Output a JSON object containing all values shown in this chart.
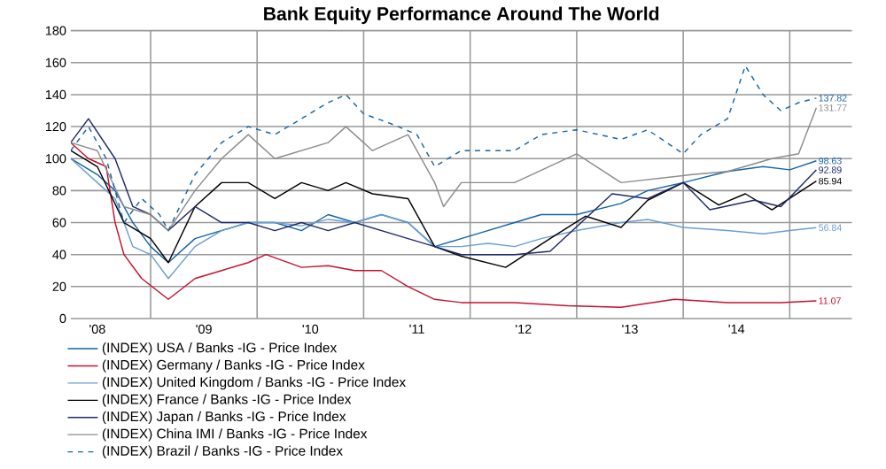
{
  "chart_data": {
    "type": "line",
    "title": "Bank Equity Performance Around The World",
    "xlim": [
      "2008-04",
      "2015-08"
    ],
    "ylim": [
      0,
      180
    ],
    "xticks": [
      {
        "value": "2008-07",
        "label": "'08"
      },
      {
        "value": "2009-07",
        "label": "'09"
      },
      {
        "value": "2010-07",
        "label": "'10"
      },
      {
        "value": "2011-07",
        "label": "'11"
      },
      {
        "value": "2012-07",
        "label": "'12"
      },
      {
        "value": "2013-07",
        "label": "'13"
      },
      {
        "value": "2014-07",
        "label": "'14"
      },
      {
        "value": "2009-01",
        "label": null
      },
      {
        "value": "2010-01",
        "label": null
      },
      {
        "value": "2011-01",
        "label": null
      },
      {
        "value": "2012-01",
        "label": null
      },
      {
        "value": "2013-01",
        "label": null
      },
      {
        "value": "2014-01",
        "label": null
      },
      {
        "value": "2015-01",
        "label": null
      }
    ],
    "yticks": [
      0,
      20,
      40,
      60,
      80,
      100,
      120,
      140,
      160,
      180
    ],
    "grid": true,
    "legend": "bottom",
    "series": [
      {
        "name": "(INDEX) USA / Banks -IG - Price Index",
        "color": "#1565a8",
        "x": [
          "2008-04",
          "2008-07",
          "2008-09",
          "2008-11",
          "2009-01",
          "2009-03",
          "2009-06",
          "2009-09",
          "2009-12",
          "2010-03",
          "2010-06",
          "2010-09",
          "2010-12",
          "2011-03",
          "2011-06",
          "2011-09",
          "2011-12",
          "2012-06",
          "2012-09",
          "2013-01",
          "2013-06",
          "2013-09",
          "2014-01",
          "2014-06",
          "2014-10",
          "2015-01",
          "2015-04"
        ],
        "values": [
          100,
          90,
          80,
          60,
          45,
          35,
          50,
          55,
          60,
          60,
          55,
          65,
          60,
          65,
          60,
          45,
          50,
          60,
          65,
          65,
          72,
          80,
          85,
          92,
          95,
          93,
          98.63
        ],
        "value_labels": [
          null,
          null,
          null,
          null,
          null,
          null,
          null,
          null,
          null,
          null,
          null,
          null,
          null,
          null,
          null,
          null,
          null,
          null,
          null,
          null,
          null,
          null,
          null,
          null,
          null,
          null,
          "98.63"
        ]
      },
      {
        "name": "(INDEX) Germany / Banks -IG - Price Index",
        "color": "#c8102e",
        "x": [
          "2008-04",
          "2008-06",
          "2008-08",
          "2008-09",
          "2008-10",
          "2008-12",
          "2009-03",
          "2009-06",
          "2009-09",
          "2009-12",
          "2010-02",
          "2010-06",
          "2010-09",
          "2010-12",
          "2011-03",
          "2011-06",
          "2011-09",
          "2011-12",
          "2012-06",
          "2012-12",
          "2013-06",
          "2013-12",
          "2014-06",
          "2014-12",
          "2015-04"
        ],
        "values": [
          110,
          100,
          95,
          60,
          40,
          25,
          12,
          25,
          30,
          35,
          40,
          32,
          33,
          30,
          30,
          20,
          12,
          10,
          10,
          8,
          7,
          12,
          10,
          10,
          11.07
        ],
        "value_labels": [
          null,
          null,
          null,
          null,
          null,
          null,
          null,
          null,
          null,
          null,
          null,
          null,
          null,
          null,
          null,
          null,
          null,
          null,
          null,
          null,
          null,
          null,
          null,
          null,
          "11.07"
        ]
      },
      {
        "name": "(INDEX) United Kingdom / Banks -IG - Price Index",
        "color": "#6a9fd4",
        "x": [
          "2008-04",
          "2008-07",
          "2008-09",
          "2008-11",
          "2009-01",
          "2009-03",
          "2009-06",
          "2009-09",
          "2009-12",
          "2010-03",
          "2010-06",
          "2010-09",
          "2010-12",
          "2011-03",
          "2011-06",
          "2011-09",
          "2011-12",
          "2012-03",
          "2012-06",
          "2012-09",
          "2013-01",
          "2013-06",
          "2013-09",
          "2014-01",
          "2014-06",
          "2014-10",
          "2015-01",
          "2015-04"
        ],
        "values": [
          100,
          85,
          75,
          45,
          40,
          25,
          45,
          55,
          60,
          60,
          58,
          62,
          60,
          65,
          60,
          45,
          45,
          47,
          45,
          50,
          55,
          60,
          62,
          57,
          55,
          53,
          55,
          56.84
        ],
        "value_labels": [
          null,
          null,
          null,
          null,
          null,
          null,
          null,
          null,
          null,
          null,
          null,
          null,
          null,
          null,
          null,
          null,
          null,
          null,
          null,
          null,
          null,
          null,
          null,
          null,
          null,
          null,
          null,
          "56.84"
        ]
      },
      {
        "name": "(INDEX) France / Banks -IG - Price Index",
        "color": "#000000",
        "x": [
          "2008-04",
          "2008-07",
          "2008-10",
          "2009-01",
          "2009-03",
          "2009-06",
          "2009-09",
          "2009-12",
          "2010-03",
          "2010-06",
          "2010-09",
          "2010-11",
          "2011-02",
          "2011-06",
          "2011-09",
          "2011-12",
          "2012-05",
          "2012-10",
          "2013-02",
          "2013-06",
          "2013-09",
          "2014-01",
          "2014-05",
          "2014-08",
          "2014-11",
          "2015-04"
        ],
        "values": [
          105,
          95,
          60,
          50,
          35,
          70,
          85,
          85,
          75,
          85,
          80,
          85,
          78,
          75,
          45,
          39,
          32,
          50,
          64,
          57,
          74,
          85,
          71,
          78,
          68,
          85.94
        ],
        "value_labels": [
          null,
          null,
          null,
          null,
          null,
          null,
          null,
          null,
          null,
          null,
          null,
          null,
          null,
          null,
          null,
          null,
          null,
          null,
          null,
          null,
          null,
          null,
          null,
          null,
          null,
          "85.94"
        ]
      },
      {
        "name": "(INDEX) Japan / Banks -IG - Price Index",
        "color": "#1f2a6b",
        "x": [
          "2008-04",
          "2008-06",
          "2008-09",
          "2008-11",
          "2009-01",
          "2009-03",
          "2009-06",
          "2009-09",
          "2009-12",
          "2010-03",
          "2010-06",
          "2010-09",
          "2010-12",
          "2011-03",
          "2011-06",
          "2011-09",
          "2011-12",
          "2012-06",
          "2012-10",
          "2013-05",
          "2013-09",
          "2014-01",
          "2014-04",
          "2014-09",
          "2014-12",
          "2015-04"
        ],
        "values": [
          110,
          125,
          100,
          70,
          65,
          55,
          70,
          60,
          60,
          55,
          60,
          55,
          60,
          55,
          50,
          45,
          40,
          40,
          42,
          78,
          75,
          85,
          68,
          74,
          70,
          92.89
        ],
        "value_labels": [
          null,
          null,
          null,
          null,
          null,
          null,
          null,
          null,
          null,
          null,
          null,
          null,
          null,
          null,
          null,
          null,
          null,
          null,
          null,
          null,
          null,
          null,
          null,
          null,
          null,
          "92.89"
        ]
      },
      {
        "name": "(INDEX) China IMI / Banks -IG - Price Index",
        "color": "#8c8c8c",
        "x": [
          "2008-04",
          "2008-07",
          "2008-10",
          "2009-01",
          "2009-03",
          "2009-06",
          "2009-09",
          "2009-12",
          "2010-03",
          "2010-06",
          "2010-09",
          "2010-11",
          "2011-02",
          "2011-06",
          "2011-09",
          "2011-10",
          "2011-12",
          "2012-06",
          "2013-01",
          "2013-06",
          "2014-02",
          "2014-06",
          "2014-11",
          "2015-02",
          "2015-04"
        ],
        "values": [
          110,
          105,
          70,
          65,
          55,
          80,
          100,
          115,
          100,
          105,
          110,
          120,
          105,
          115,
          85,
          70,
          85,
          85,
          103,
          85,
          90,
          92,
          100,
          103,
          131.77
        ],
        "value_labels": [
          null,
          null,
          null,
          null,
          null,
          null,
          null,
          null,
          null,
          null,
          null,
          null,
          null,
          null,
          null,
          null,
          null,
          null,
          null,
          null,
          null,
          null,
          null,
          null,
          "131.77"
        ]
      },
      {
        "name": "(INDEX) Brazil / Banks -IG - Price Index",
        "color": "#1565a8",
        "line_style": "dashed",
        "x": [
          "2008-04",
          "2008-06",
          "2008-08",
          "2008-10",
          "2008-12",
          "2009-02",
          "2009-03",
          "2009-06",
          "2009-09",
          "2009-12",
          "2010-03",
          "2010-06",
          "2010-09",
          "2010-11",
          "2011-01",
          "2011-04",
          "2011-07",
          "2011-09",
          "2011-12",
          "2012-06",
          "2012-09",
          "2013-01",
          "2013-06",
          "2013-09",
          "2014-01",
          "2014-03",
          "2014-06",
          "2014-08",
          "2014-10",
          "2014-12",
          "2015-02",
          "2015-04"
        ],
        "values": [
          105,
          120,
          100,
          60,
          75,
          65,
          55,
          90,
          110,
          120,
          115,
          125,
          135,
          140,
          128,
          122,
          115,
          95,
          105,
          105,
          115,
          118,
          112,
          118,
          103,
          115,
          125,
          158,
          140,
          130,
          135,
          137.82
        ],
        "value_labels": [
          null,
          null,
          null,
          null,
          null,
          null,
          null,
          null,
          null,
          null,
          null,
          null,
          null,
          null,
          null,
          null,
          null,
          null,
          null,
          null,
          null,
          null,
          null,
          null,
          null,
          null,
          null,
          null,
          null,
          null,
          null,
          "137.82"
        ]
      }
    ]
  }
}
